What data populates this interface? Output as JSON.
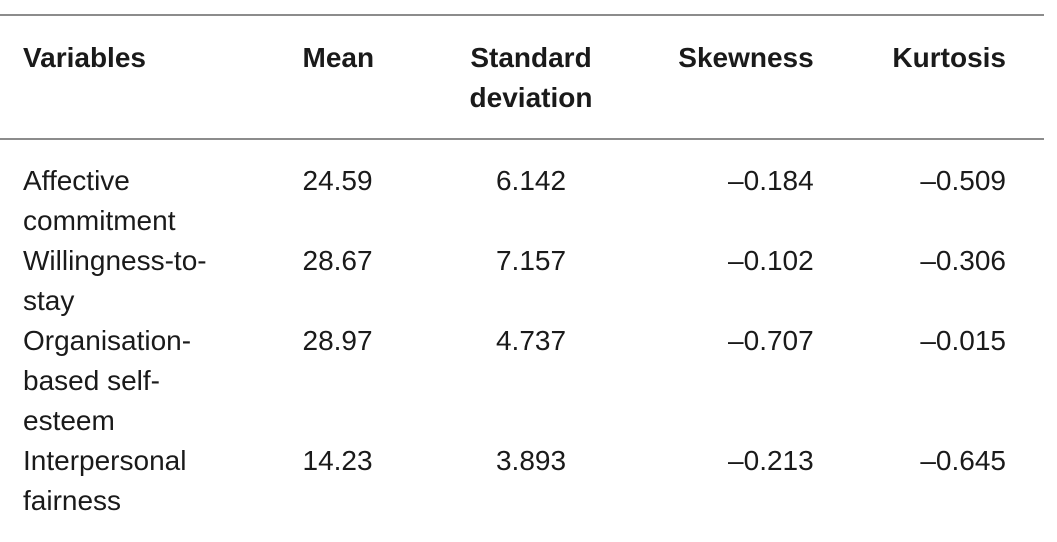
{
  "table": {
    "headers": {
      "variables": "Variables",
      "mean": "Mean",
      "sd_line1": "Standard",
      "sd_line2": "deviation",
      "skewness": "Skewness",
      "kurtosis": "Kurtosis"
    },
    "rows": [
      {
        "variable": "Affective commitment",
        "mean": "24.59",
        "sd": "6.142",
        "skewness": "–0.184",
        "kurtosis": "–0.509"
      },
      {
        "variable": "Willingness-to-stay",
        "mean": "28.67",
        "sd": "7.157",
        "skewness": "–0.102",
        "kurtosis": "–0.306"
      },
      {
        "variable": "Organisation-based self-esteem",
        "mean": "28.97",
        "sd": "4.737",
        "skewness": "–0.707",
        "kurtosis": "–0.015"
      },
      {
        "variable": "Interpersonal fairness",
        "mean": "14.23",
        "sd": "3.893",
        "skewness": "–0.213",
        "kurtosis": "–0.645"
      }
    ]
  }
}
